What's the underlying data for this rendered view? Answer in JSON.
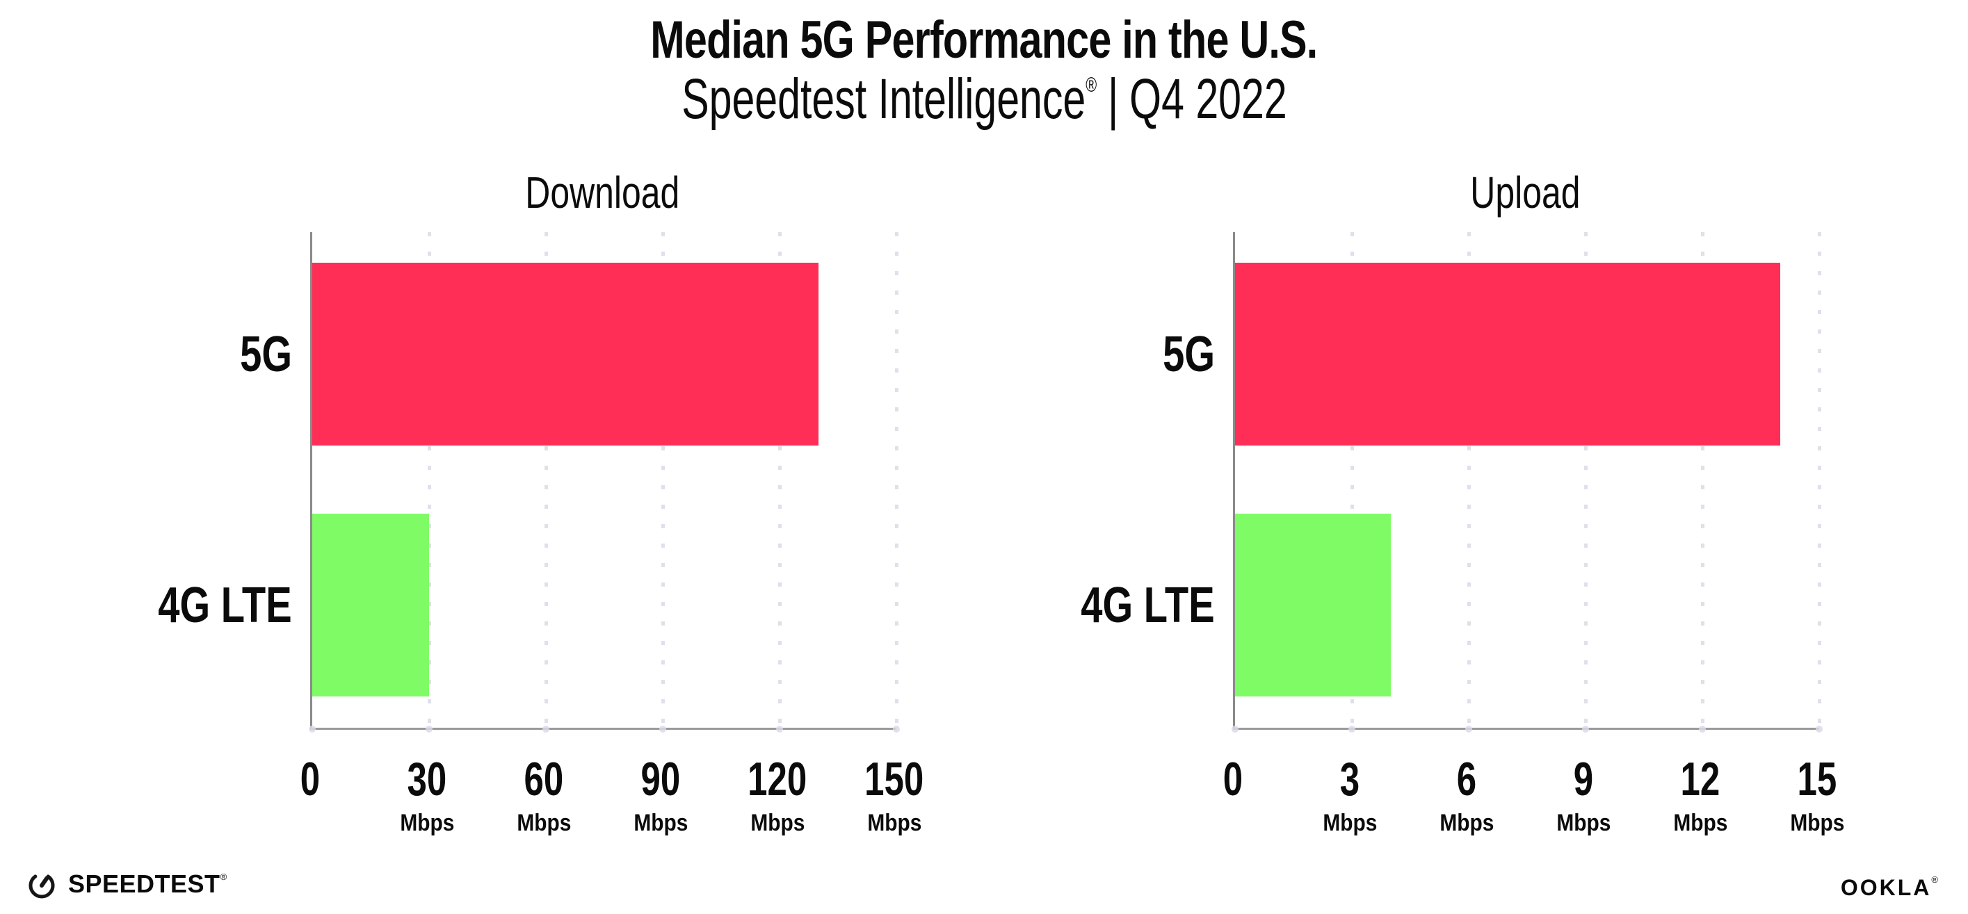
{
  "page": {
    "background": "#ffffff",
    "text_color": "#0b0b0b"
  },
  "header": {
    "title": "Median 5G Performance in the U.S.",
    "subtitle": {
      "brand": "Speedtest Intelligence",
      "mark": "®",
      "separator": "|",
      "period": "Q4 2022"
    }
  },
  "chart_data": [
    {
      "type": "bar",
      "orientation": "horizontal",
      "title": "Download",
      "categories": [
        "5G",
        "4G LTE"
      ],
      "values": [
        130,
        30
      ],
      "colors": [
        "#FF2E56",
        "#7FFB66"
      ],
      "xlabel": "Mbps",
      "xlim": [
        0,
        150
      ],
      "xticks": [
        0,
        30,
        60,
        90,
        120,
        150
      ],
      "tick_unit": "Mbps",
      "grid": "dotted-vertical",
      "legend": "none"
    },
    {
      "type": "bar",
      "orientation": "horizontal",
      "title": "Upload",
      "categories": [
        "5G",
        "4G LTE"
      ],
      "values": [
        14,
        4
      ],
      "colors": [
        "#FF2E56",
        "#7FFB66"
      ],
      "xlabel": "Mbps",
      "xlim": [
        0,
        15
      ],
      "xticks": [
        0,
        3,
        6,
        9,
        12,
        15
      ],
      "tick_unit": "Mbps",
      "grid": "dotted-vertical",
      "legend": "none"
    }
  ],
  "footer": {
    "speedtest": {
      "label": "SPEEDTEST",
      "mark": "®",
      "icon": "gauge-icon"
    },
    "ookla": {
      "label": "OOKLA",
      "mark": "®"
    }
  },
  "style": {
    "bar_5g_color": "#FF2E56",
    "bar_4g_color": "#7FFB66",
    "grid_dot_color": "#dfe0ea",
    "spine_color": "#8a8a8a",
    "axis_color": "#9a9a9a",
    "tick_dot_color": "#d9dbe8"
  }
}
